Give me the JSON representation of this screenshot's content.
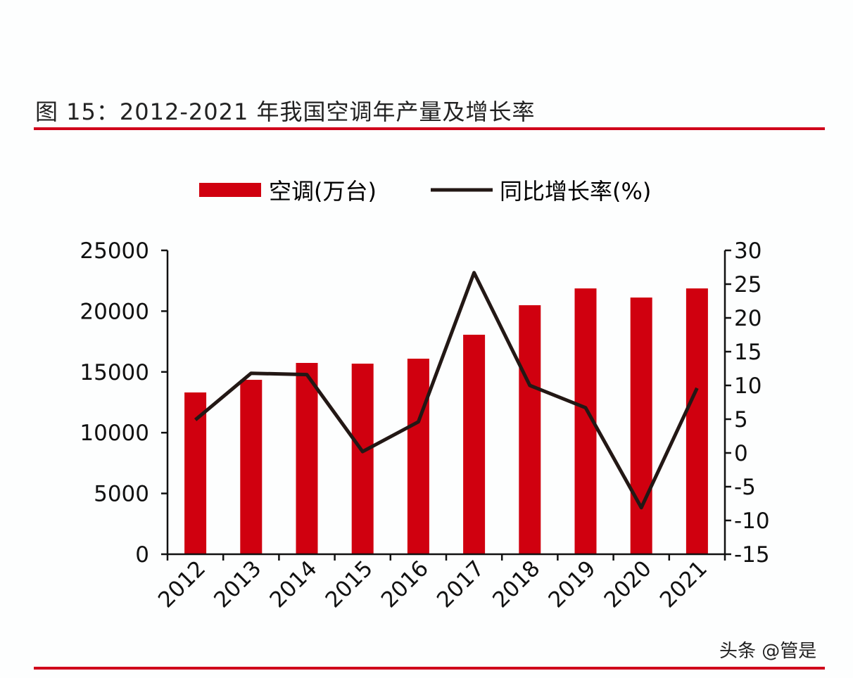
{
  "figure_title": "图 15：2012-2021 年我国空调年产量及增长率",
  "watermark": "头条 @管是",
  "colors": {
    "bar": "#d0000f",
    "line": "#231815",
    "rule": "#d0021b"
  },
  "chart_data": {
    "type": "bar+line",
    "categories": [
      "2012",
      "2013",
      "2014",
      "2015",
      "2016",
      "2017",
      "2018",
      "2019",
      "2020",
      "2021"
    ],
    "series": [
      {
        "name": "空调(万台)",
        "type": "bar",
        "axis": "left",
        "values": [
          13310,
          14350,
          15740,
          15680,
          16090,
          18060,
          20490,
          21870,
          21120,
          21870
        ]
      },
      {
        "name": "同比增长率(%)",
        "type": "line",
        "axis": "right",
        "values": [
          4.9,
          11.8,
          11.6,
          0.2,
          4.6,
          26.7,
          10.0,
          6.7,
          -8.1,
          9.6
        ]
      }
    ],
    "y_left": {
      "range": [
        0,
        25000
      ],
      "ticks": [
        "0",
        "5000",
        "10000",
        "15000",
        "20000",
        "25000"
      ]
    },
    "y_right": {
      "range": [
        -15,
        30
      ],
      "ticks": [
        "-15",
        "-10",
        "-5",
        "0",
        "5",
        "10",
        "15",
        "20",
        "25",
        "30"
      ]
    },
    "legend_position": "top",
    "grid": false
  }
}
